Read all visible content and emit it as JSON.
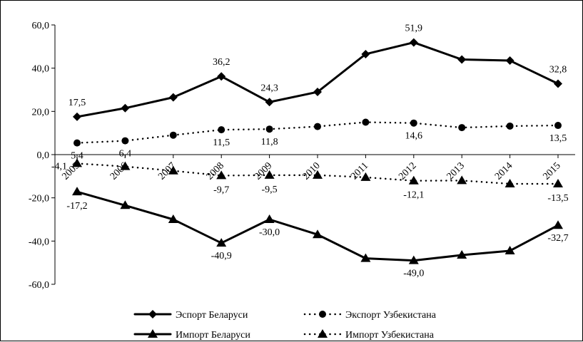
{
  "chart_data": {
    "type": "line",
    "title": "",
    "xlabel": "",
    "ylabel": "",
    "ylim": [
      -60,
      60
    ],
    "y_ticks": [
      "60,0",
      "40,0",
      "20,0",
      "0,0",
      "-20,0",
      "-40,0",
      "-60,0"
    ],
    "x": [
      "2005",
      "2006",
      "2007",
      "2008",
      "2009",
      "2010",
      "2011",
      "2012",
      "2013",
      "2014",
      "2015"
    ],
    "grid": false,
    "legend_position": "bottom",
    "series": [
      {
        "name": "Эспорт Беларуси",
        "style": "solid",
        "marker": "diamond",
        "values": [
          17.5,
          21.5,
          26.5,
          36.2,
          24.3,
          29.0,
          46.5,
          51.9,
          44.0,
          43.5,
          32.8
        ],
        "labels": [
          "17,5",
          "",
          "",
          "36,2",
          "24,3",
          "",
          "",
          "51,9",
          "",
          "",
          "32,8"
        ]
      },
      {
        "name": "Экспорт Узбекистана",
        "style": "dotted",
        "marker": "circle",
        "values": [
          5.4,
          6.4,
          9.0,
          11.5,
          11.8,
          13.0,
          15.0,
          14.6,
          12.5,
          13.2,
          13.5
        ],
        "labels": [
          "5,4",
          "6,4",
          "",
          "11,5",
          "11,8",
          "",
          "",
          "14,6",
          "",
          "",
          "13,5"
        ]
      },
      {
        "name": "Импорт Беларуси",
        "style": "solid",
        "marker": "triangle",
        "values": [
          -17.2,
          -23.5,
          -30.0,
          -40.9,
          -30.0,
          -37.0,
          -48.0,
          -49.0,
          -46.5,
          -44.5,
          -32.7
        ],
        "labels": [
          "-17,2",
          "",
          "",
          "-40,9",
          "-30,0",
          "",
          "",
          "-49,0",
          "",
          "",
          "-32,7"
        ]
      },
      {
        "name": "Импорт Узбекистана",
        "style": "dotted",
        "marker": "triangle",
        "values": [
          -4.1,
          -5.5,
          -7.5,
          -9.7,
          -9.5,
          -9.5,
          -10.5,
          -12.1,
          -12.0,
          -13.5,
          -13.5
        ],
        "labels": [
          "-4,1",
          "",
          "",
          "-9,7",
          "-9,5",
          "",
          "",
          "-12,1",
          "",
          "",
          "-13,5"
        ]
      }
    ]
  }
}
